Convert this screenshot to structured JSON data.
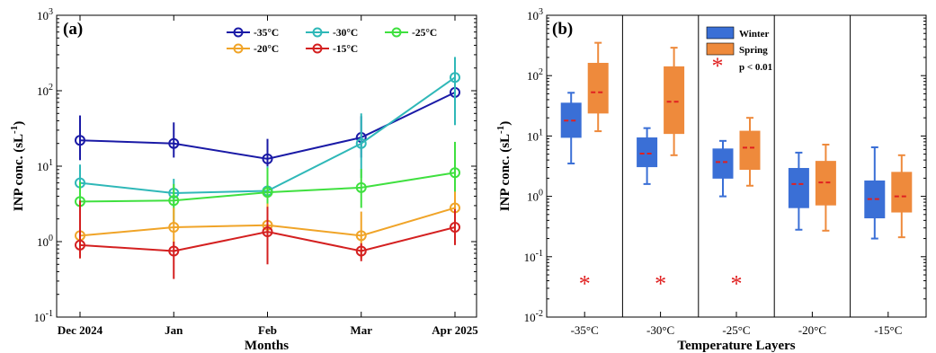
{
  "chart_data": [
    {
      "type": "line",
      "panel_label": "(a)",
      "xlabel": "Months",
      "ylabel": "INP conc. (sL",
      "ylabel_sup": "-1",
      "ylabel_end": ")",
      "yscale": "log",
      "ylim": [
        0.1,
        1000
      ],
      "y_ticks": [
        {
          "base": "10",
          "exp": "-1"
        },
        {
          "base": "10",
          "exp": "0"
        },
        {
          "base": "10",
          "exp": "1"
        },
        {
          "base": "10",
          "exp": "2"
        },
        {
          "base": "10",
          "exp": "3"
        }
      ],
      "x_tick_labels": [
        "Dec 2024",
        "Jan",
        "Feb",
        "Mar",
        "Apr 2025"
      ],
      "legend_position": "top-right",
      "series": [
        {
          "name": "-35°C",
          "color": "#1a1aa6",
          "x": [
            0,
            1,
            2,
            3,
            4
          ],
          "values": [
            22,
            20,
            12.5,
            24,
            95
          ],
          "err_low": [
            12,
            13,
            7,
            13,
            55
          ],
          "err_high": [
            47,
            38,
            23,
            46,
            195
          ]
        },
        {
          "name": "-30°C",
          "color": "#2fb8b8",
          "x": [
            0,
            1,
            2,
            3,
            4
          ],
          "values": [
            6.0,
            4.4,
            4.7,
            20,
            150
          ],
          "err_low": [
            4.2,
            2.9,
            2.2,
            7,
            35
          ],
          "err_high": [
            10.5,
            6.8,
            10,
            50,
            280
          ]
        },
        {
          "name": "-25°C",
          "color": "#3fe03f",
          "x": [
            0,
            1,
            2,
            3,
            4
          ],
          "values": [
            3.4,
            3.5,
            4.5,
            5.2,
            8.2
          ],
          "err_low": [
            2.0,
            1.8,
            2.0,
            2.8,
            4.5
          ],
          "err_high": [
            6.2,
            5.8,
            9.5,
            9.2,
            21
          ]
        },
        {
          "name": "-20°C",
          "color": "#f0a428",
          "x": [
            0,
            1,
            2,
            3,
            4
          ],
          "values": [
            1.2,
            1.55,
            1.65,
            1.2,
            2.8
          ],
          "err_low": [
            0.6,
            0.8,
            0.7,
            0.6,
            1.8
          ],
          "err_high": [
            2.5,
            2.8,
            3.2,
            2.5,
            4.6
          ]
        },
        {
          "name": "-15°C",
          "color": "#d42020",
          "x": [
            0,
            1,
            2,
            3,
            4
          ],
          "values": [
            0.9,
            0.75,
            1.35,
            0.75,
            1.55
          ],
          "err_low": [
            0.6,
            0.32,
            0.5,
            0.55,
            0.9
          ],
          "err_high": [
            3.5,
            1.0,
            2.9,
            0.95,
            2.7
          ]
        }
      ]
    },
    {
      "type": "box",
      "panel_label": "(b)",
      "xlabel": "Temperature Layers",
      "ylabel": "INP conc. (sL",
      "ylabel_sup": "-1",
      "ylabel_end": ")",
      "yscale": "log",
      "ylim": [
        0.01,
        1000
      ],
      "y_ticks": [
        {
          "base": "10",
          "exp": "-2"
        },
        {
          "base": "10",
          "exp": "-1"
        },
        {
          "base": "10",
          "exp": "0"
        },
        {
          "base": "10",
          "exp": "1"
        },
        {
          "base": "10",
          "exp": "2"
        },
        {
          "base": "10",
          "exp": "3"
        }
      ],
      "categories": [
        "-35°C",
        "-30°C",
        "-25°C",
        "-20°C",
        "-15°C"
      ],
      "legend_position": "top-left",
      "significance_label": "p < 0.01",
      "significant": [
        true,
        true,
        true,
        false,
        false
      ],
      "significance_y": 0.04,
      "series": [
        {
          "name": "Winter",
          "color": "#3a6fd6",
          "boxes": [
            {
              "whisker_low": 3.5,
              "q1": 9.5,
              "median": 18,
              "q3": 35,
              "whisker_high": 52
            },
            {
              "whisker_low": 1.6,
              "q1": 3.1,
              "median": 5.1,
              "q3": 9.3,
              "whisker_high": 13.5
            },
            {
              "whisker_low": 1.0,
              "q1": 2.0,
              "median": 3.7,
              "q3": 6.1,
              "whisker_high": 8.3
            },
            {
              "whisker_low": 0.28,
              "q1": 0.65,
              "median": 1.6,
              "q3": 2.9,
              "whisker_high": 5.3
            },
            {
              "whisker_low": 0.2,
              "q1": 0.44,
              "median": 0.9,
              "q3": 1.8,
              "whisker_high": 6.5
            }
          ]
        },
        {
          "name": "Spring",
          "color": "#ee8a3c",
          "boxes": [
            {
              "whisker_low": 12,
              "q1": 24,
              "median": 53,
              "q3": 160,
              "whisker_high": 350
            },
            {
              "whisker_low": 4.8,
              "q1": 11,
              "median": 37,
              "q3": 140,
              "whisker_high": 290
            },
            {
              "whisker_low": 1.5,
              "q1": 2.8,
              "median": 6.4,
              "q3": 12,
              "whisker_high": 20
            },
            {
              "whisker_low": 0.27,
              "q1": 0.72,
              "median": 1.7,
              "q3": 3.8,
              "whisker_high": 7.2
            },
            {
              "whisker_low": 0.21,
              "q1": 0.55,
              "median": 1.0,
              "q3": 2.5,
              "whisker_high": 4.8
            }
          ]
        }
      ]
    }
  ]
}
